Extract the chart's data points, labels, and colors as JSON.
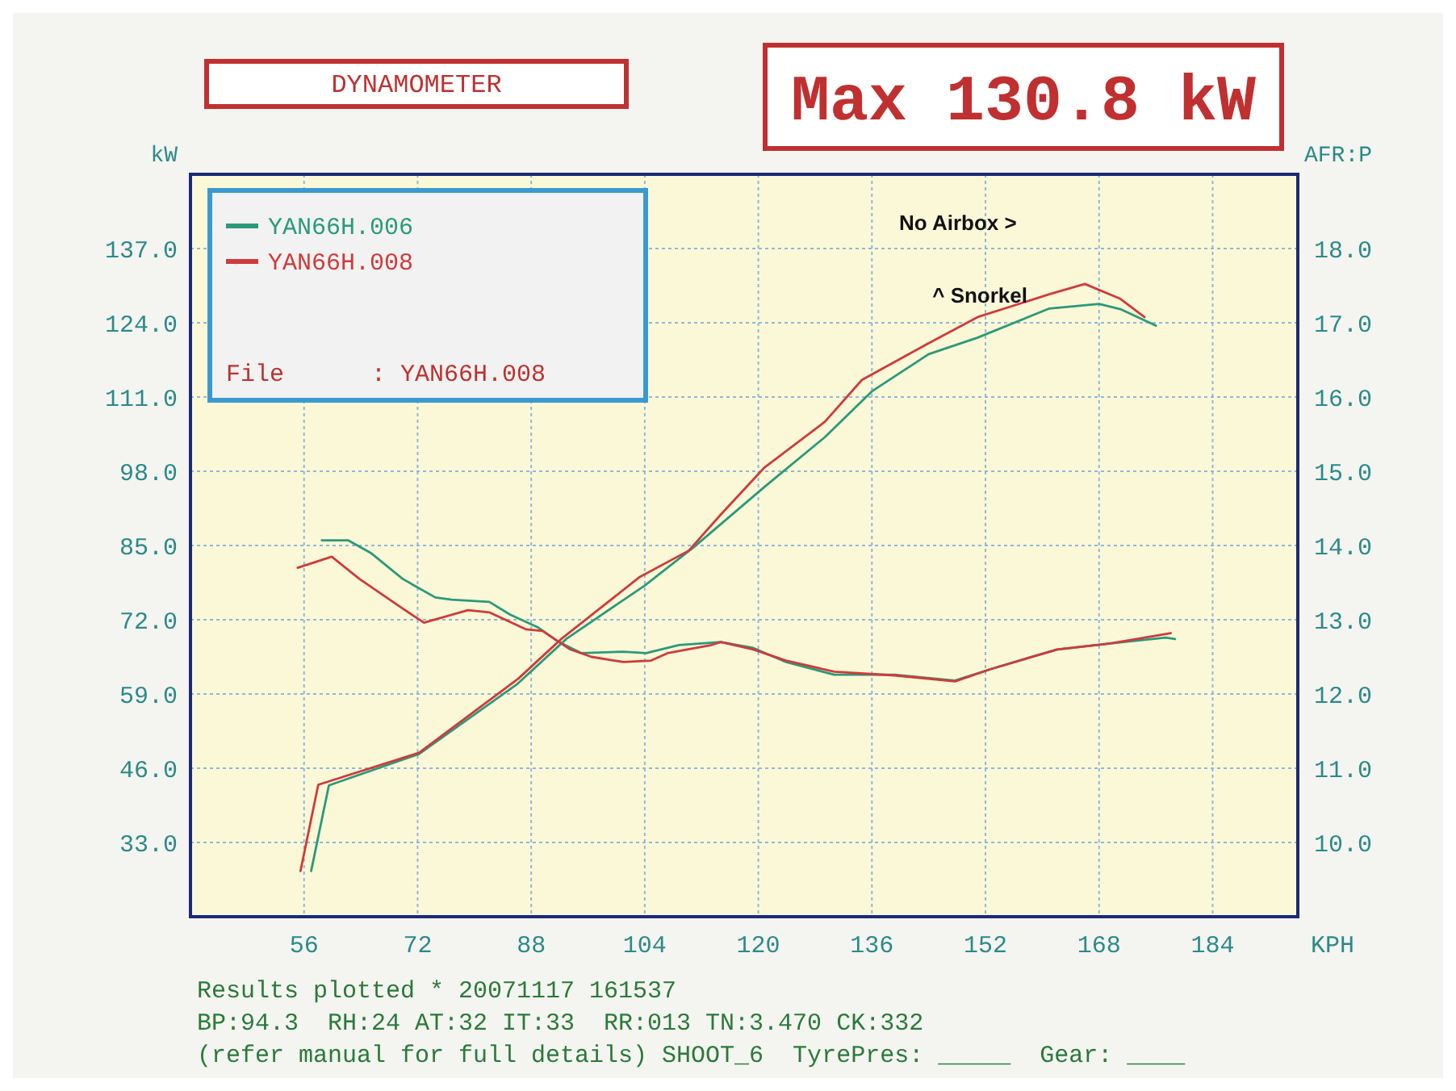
{
  "chart_data": {
    "type": "line",
    "title": "DYNAMOMETER",
    "xlabel": "KPH",
    "ylabel": "kW",
    "y2label": "AFR:P",
    "annotations": [
      "Max 130.8 kW",
      "File      : YAN66H.008",
      "No Airbox >",
      "^ Snorkel",
      "Results plotted * 20071117 161537",
      "BP:94.3  RH:24 AT:32 IT:33  RR:013 TN:3.470 CK:332",
      "(refer manual for full details) SHOOT_6  TyrePres: _____  Gear: ____"
    ],
    "series": [
      {
        "name": "YAN66H.006",
        "color": "#2a9a7a",
        "x": [
          57,
          59.5,
          72.2,
          86,
          93,
          104,
          111,
          120.9,
          129.4,
          136,
          144,
          150.9,
          161,
          168,
          171,
          176
        ],
        "values": [
          28,
          43,
          48.5,
          60.7,
          68.7,
          78,
          84.8,
          95.3,
          104,
          112,
          118.5,
          121.4,
          126.5,
          127.3,
          126.4,
          123.5
        ]
      },
      {
        "name": "YAN66H.008",
        "color": "#d03a3a",
        "x": [
          55.5,
          58,
          72.2,
          86.2,
          92.3,
          103.3,
          110.2,
          114.7,
          120.9,
          129.4,
          134.6,
          143.8,
          150.9,
          161,
          166,
          171,
          174.4
        ],
        "values": [
          28,
          43.1,
          48.7,
          61.7,
          68.7,
          79.5,
          84.1,
          90.4,
          98.7,
          106.7,
          114,
          120.3,
          125,
          129,
          130.8,
          128.2,
          125
        ]
      },
      {
        "color": "#2a9a7a",
        "axis": "y2",
        "x": [
          58.5,
          62.2,
          65.4,
          69.9,
          74.5,
          76.8,
          82.1,
          85,
          88.9,
          91.9,
          95.1,
          101,
          104.2,
          108.8,
          114.7,
          119.3,
          123.9,
          130.7,
          139.2,
          147.7,
          152.9,
          162.1,
          169.6,
          177.4,
          178.7
        ],
        "values": [
          14.07,
          14.07,
          13.9,
          13.55,
          13.3,
          13.27,
          13.24,
          13.07,
          12.9,
          12.7,
          12.55,
          12.57,
          12.55,
          12.66,
          12.7,
          12.62,
          12.43,
          12.26,
          12.26,
          12.18,
          12.34,
          12.6,
          12.68,
          12.76,
          12.74
        ]
      },
      {
        "color": "#d03a3a",
        "axis": "y2",
        "x": [
          55.1,
          59.9,
          63.8,
          69.9,
          72.9,
          79.1,
          82.1,
          87.3,
          89.6,
          93.5,
          96.5,
          101,
          104.9,
          107.2,
          113.4,
          114.7,
          119.3,
          123.9,
          130.7,
          139.2,
          147.7,
          152.9,
          162.1,
          169.6,
          178.1
        ],
        "values": [
          13.7,
          13.85,
          13.55,
          13.15,
          12.96,
          13.13,
          13.1,
          12.87,
          12.85,
          12.6,
          12.5,
          12.43,
          12.45,
          12.55,
          12.66,
          12.7,
          12.6,
          12.45,
          12.3,
          12.25,
          12.17,
          12.34,
          12.6,
          12.68,
          12.82
        ]
      }
    ],
    "xlim": [
      40,
      196
    ],
    "xticks": [
      56,
      72,
      88,
      104,
      120,
      136,
      152,
      168,
      184
    ],
    "ylim": [
      20,
      150
    ],
    "yticks": [
      {
        "value": 33,
        "label": "33.0"
      },
      {
        "value": 46,
        "label": "46.0"
      },
      {
        "value": 59,
        "label": "59.0"
      },
      {
        "value": 72,
        "label": "72.0"
      },
      {
        "value": 85,
        "label": "85.0"
      },
      {
        "value": 98,
        "label": "98.0"
      },
      {
        "value": 111,
        "label": "111.0"
      },
      {
        "value": 124,
        "label": "124.0"
      },
      {
        "value": 137,
        "label": "137.0"
      }
    ],
    "y2lim": [
      9,
      19
    ],
    "y2ticks": [
      {
        "value": 10,
        "label": "10.0"
      },
      {
        "value": 11,
        "label": "11.0"
      },
      {
        "value": 12,
        "label": "12.0"
      },
      {
        "value": 13,
        "label": "13.0"
      },
      {
        "value": 14,
        "label": "14.0"
      },
      {
        "value": 15,
        "label": "15.0"
      },
      {
        "value": 16,
        "label": "16.0"
      },
      {
        "value": 17,
        "label": "17.0"
      },
      {
        "value": 18,
        "label": "18.0"
      }
    ],
    "grid": true,
    "legend": "top left",
    "line_style": "solid"
  }
}
